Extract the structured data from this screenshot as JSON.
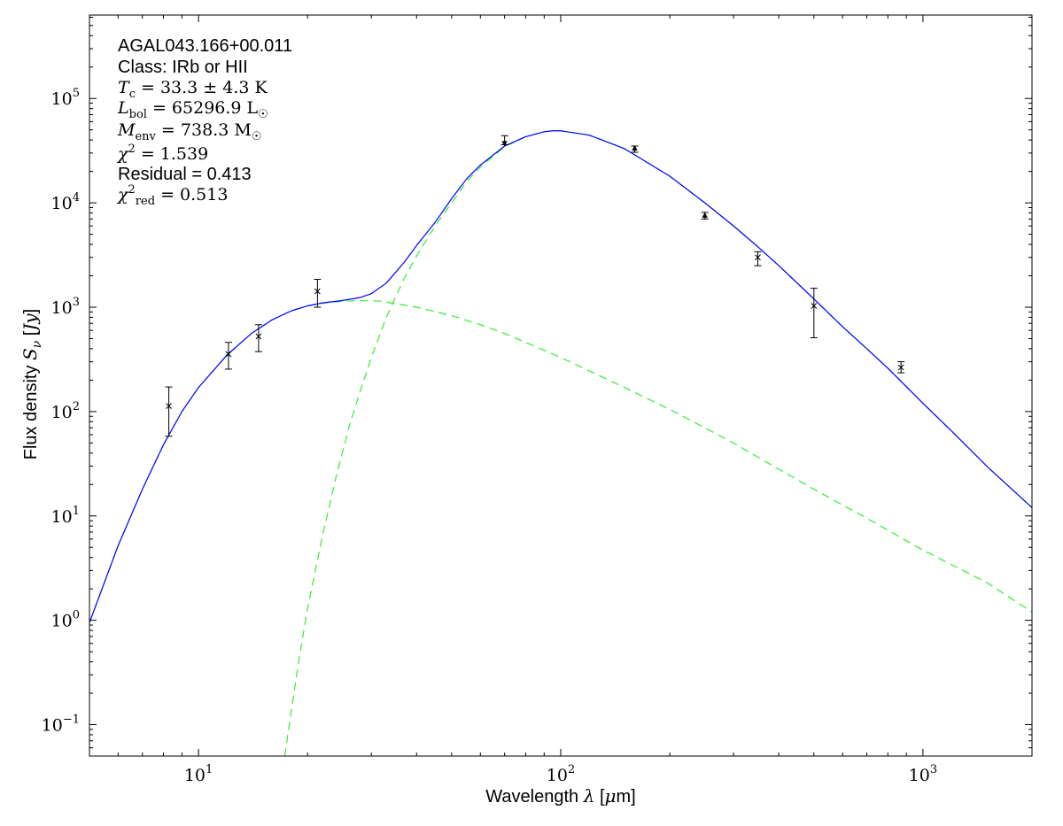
{
  "chart_data": {
    "type": "line",
    "xlabel": "Wavelength λ [μm]",
    "ylabel": "Flux density S_ν [Jy]",
    "xscale": "log",
    "yscale": "log",
    "xlim": [
      5,
      2000
    ],
    "ylim": [
      0.05,
      630000
    ],
    "x_ticks": [
      {
        "value": 10,
        "base": "10",
        "exp": "1"
      },
      {
        "value": 100,
        "base": "10",
        "exp": "2"
      },
      {
        "value": 1000,
        "base": "10",
        "exp": "3"
      }
    ],
    "y_ticks": [
      {
        "value": 0.1,
        "base": "10",
        "exp": "−1"
      },
      {
        "value": 1,
        "base": "10",
        "exp": "0"
      },
      {
        "value": 10,
        "base": "10",
        "exp": "1"
      },
      {
        "value": 100,
        "base": "10",
        "exp": "2"
      },
      {
        "value": 1000,
        "base": "10",
        "exp": "3"
      },
      {
        "value": 10000,
        "base": "10",
        "exp": "4"
      },
      {
        "value": 100000,
        "base": "10",
        "exp": "5"
      }
    ],
    "annotations": {
      "source": "AGAL043.166+00.011",
      "class": "Class: IRb or HII",
      "tc": "T_c = 33.3 ± 4.3 K",
      "lbol": "L_bol = 65296.9 L☉",
      "menv": "M_env = 738.3 M☉",
      "chi2": "χ² = 1.539",
      "residual": "Residual = 0.413",
      "chi2red": "χ²_red = 0.513"
    },
    "total_fit": {
      "color": "#0000ff",
      "style": "solid",
      "points": [
        [
          5,
          0.95
        ],
        [
          6,
          5.2
        ],
        [
          7,
          18
        ],
        [
          8,
          48
        ],
        [
          9,
          100
        ],
        [
          10,
          170
        ],
        [
          12,
          350
        ],
        [
          14,
          560
        ],
        [
          16,
          760
        ],
        [
          18,
          920
        ],
        [
          20,
          1030
        ],
        [
          22,
          1100
        ],
        [
          25,
          1160
        ],
        [
          28,
          1240
        ],
        [
          30,
          1350
        ],
        [
          33,
          1700
        ],
        [
          37,
          2700
        ],
        [
          40,
          3900
        ],
        [
          45,
          6500
        ],
        [
          50,
          11000
        ],
        [
          55,
          17000
        ],
        [
          60,
          23000
        ],
        [
          70,
          35000
        ],
        [
          80,
          43000
        ],
        [
          90,
          48000
        ],
        [
          95,
          49000
        ],
        [
          100,
          49000
        ],
        [
          120,
          44500
        ],
        [
          150,
          33000
        ],
        [
          200,
          18000
        ],
        [
          250,
          10000
        ],
        [
          300,
          6000
        ],
        [
          350,
          3800
        ],
        [
          400,
          2500
        ],
        [
          500,
          1200
        ],
        [
          600,
          650
        ],
        [
          700,
          400
        ],
        [
          800,
          260
        ],
        [
          1000,
          120
        ],
        [
          1200,
          65
        ],
        [
          1500,
          30
        ],
        [
          2000,
          12
        ]
      ]
    },
    "warm_component": {
      "color": "#33ee33",
      "style": "dashed",
      "points": [
        [
          5,
          0.95
        ],
        [
          6,
          5.2
        ],
        [
          7,
          18
        ],
        [
          8,
          48
        ],
        [
          9,
          100
        ],
        [
          10,
          170
        ],
        [
          12,
          350
        ],
        [
          14,
          560
        ],
        [
          16,
          760
        ],
        [
          18,
          920
        ],
        [
          20,
          1030
        ],
        [
          22,
          1090
        ],
        [
          25,
          1140
        ],
        [
          28,
          1160
        ],
        [
          32,
          1140
        ],
        [
          40,
          1000
        ],
        [
          50,
          830
        ],
        [
          60,
          680
        ],
        [
          70,
          560
        ],
        [
          80,
          460
        ],
        [
          100,
          330
        ],
        [
          150,
          170
        ],
        [
          200,
          105
        ],
        [
          300,
          50
        ],
        [
          400,
          28
        ],
        [
          500,
          18
        ],
        [
          700,
          9.5
        ],
        [
          1000,
          4.7
        ],
        [
          1500,
          2.3
        ],
        [
          2000,
          1.2
        ]
      ]
    },
    "cold_component": {
      "color": "#33ee33",
      "style": "dashed",
      "points": [
        [
          17.3,
          0.05
        ],
        [
          18,
          0.13
        ],
        [
          19,
          0.45
        ],
        [
          20,
          1.3
        ],
        [
          22,
          6.5
        ],
        [
          24,
          24
        ],
        [
          26,
          70
        ],
        [
          28,
          160
        ],
        [
          30,
          330
        ],
        [
          33,
          800
        ],
        [
          37,
          1900
        ],
        [
          40,
          3100
        ],
        [
          45,
          6000
        ],
        [
          50,
          10000
        ],
        [
          55,
          16000
        ],
        [
          60,
          22000
        ],
        [
          70,
          34500
        ],
        [
          80,
          43000
        ],
        [
          90,
          48000
        ],
        [
          95,
          49000
        ],
        [
          100,
          49000
        ],
        [
          120,
          44500
        ],
        [
          150,
          33000
        ],
        [
          200,
          18000
        ],
        [
          250,
          10000
        ],
        [
          300,
          6000
        ],
        [
          350,
          3800
        ],
        [
          400,
          2500
        ],
        [
          500,
          1200
        ],
        [
          600,
          650
        ],
        [
          700,
          400
        ],
        [
          800,
          260
        ],
        [
          1000,
          120
        ],
        [
          1200,
          65
        ],
        [
          1500,
          30
        ],
        [
          2000,
          12
        ]
      ]
    },
    "measurements": [
      {
        "x": 8.28,
        "y": 113,
        "ylow": 58,
        "yhigh": 172,
        "marker": "x"
      },
      {
        "x": 12.1,
        "y": 355,
        "ylow": 255,
        "yhigh": 460,
        "marker": "x"
      },
      {
        "x": 14.65,
        "y": 525,
        "ylow": 375,
        "yhigh": 680,
        "marker": "x"
      },
      {
        "x": 21.3,
        "y": 1420,
        "ylow": 1000,
        "yhigh": 1850,
        "marker": "x"
      },
      {
        "x": 70,
        "y": 38000,
        "ylow": 36000,
        "yhigh": 44000,
        "marker": "down-arrow"
      },
      {
        "x": 160,
        "y": 32500,
        "ylow": 30500,
        "yhigh": 35000,
        "marker": "up-arrow"
      },
      {
        "x": 250,
        "y": 7400,
        "ylow": 7000,
        "yhigh": 8100,
        "marker": "up-arrow"
      },
      {
        "x": 350,
        "y": 3000,
        "ylow": 2500,
        "yhigh": 3400,
        "marker": "x"
      },
      {
        "x": 500,
        "y": 1030,
        "ylow": 510,
        "yhigh": 1520,
        "marker": "x"
      },
      {
        "x": 870,
        "y": 265,
        "ylow": 235,
        "yhigh": 300,
        "marker": "x"
      }
    ]
  }
}
